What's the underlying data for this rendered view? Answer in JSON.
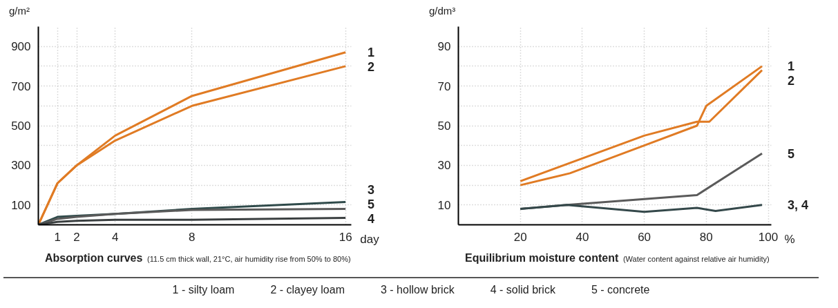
{
  "chart_data": [
    {
      "type": "line",
      "title": "Absorption curves",
      "subtitle": "(11.5 cm thick wall, 21°C, air humidity rise from 50% to 80%)",
      "xlabel": "day",
      "ylabel": "g/m²",
      "xlim": [
        0,
        16.3
      ],
      "ylim": [
        0,
        1000
      ],
      "xticks": [
        1,
        2,
        4,
        8,
        16
      ],
      "yticks": [
        100,
        {
          "value": 200,
          "label": null
        },
        300,
        {
          "value": 400,
          "label": null
        },
        500,
        {
          "value": 600,
          "label": null
        },
        700,
        {
          "value": 800,
          "label": null
        },
        900
      ],
      "grid": true,
      "line_style": "solid",
      "marker": "none",
      "x": [
        0,
        1,
        2,
        4,
        8,
        16
      ],
      "series": [
        {
          "name": "1",
          "color": "#e07b24",
          "values": [
            0,
            210,
            300,
            450,
            650,
            870
          ]
        },
        {
          "name": "2",
          "color": "#e07b24",
          "values": [
            0,
            210,
            300,
            425,
            600,
            800
          ]
        },
        {
          "name": "3",
          "color": "#2f4a4a",
          "values": [
            0,
            40,
            45,
            55,
            80,
            115
          ]
        },
        {
          "name": "5",
          "color": "#5a5a5a",
          "values": [
            0,
            30,
            40,
            55,
            75,
            80
          ]
        },
        {
          "name": "4",
          "color": "#3a3f40",
          "values": [
            0,
            15,
            20,
            25,
            25,
            35
          ]
        }
      ],
      "annotations": [
        "1 - silty loam",
        "2 - clayey loam",
        "3 - hollow brick",
        "4 - solid brick",
        "5 - concrete"
      ]
    },
    {
      "type": "line",
      "title": "Equilibrium moisture content",
      "subtitle": "(Water content against relative air humidity)",
      "xlabel": "%",
      "ylabel": "g/dm³",
      "xlim": [
        0,
        101
      ],
      "ylim": [
        0,
        100
      ],
      "xticks": [
        20,
        40,
        60,
        80,
        100
      ],
      "yticks": [
        10,
        {
          "value": 20,
          "label": null
        },
        30,
        {
          "value": 40,
          "label": null
        },
        50,
        {
          "value": 60,
          "label": null
        },
        70,
        {
          "value": 80,
          "label": null
        },
        90
      ],
      "grid": true,
      "line_style": "solid",
      "marker": "none",
      "series": [
        {
          "name": "1",
          "color": "#e07b24",
          "x": [
            20,
            36,
            60,
            77,
            80,
            98
          ],
          "values": [
            20,
            26,
            40,
            50,
            60,
            80
          ]
        },
        {
          "name": "2",
          "color": "#e07b24",
          "x": [
            20,
            60,
            77,
            81,
            98
          ],
          "values": [
            22,
            45,
            52,
            52,
            78
          ]
        },
        {
          "name": "5",
          "color": "#5a5a5a",
          "x": [
            20,
            35,
            60,
            77,
            98
          ],
          "values": [
            8,
            10,
            13,
            15,
            36
          ]
        },
        {
          "name": "3, 4",
          "color": "#34484a",
          "x": [
            20,
            35,
            60,
            77,
            83,
            98
          ],
          "values": [
            8,
            10,
            6.5,
            8.5,
            7,
            10
          ]
        }
      ]
    }
  ]
}
